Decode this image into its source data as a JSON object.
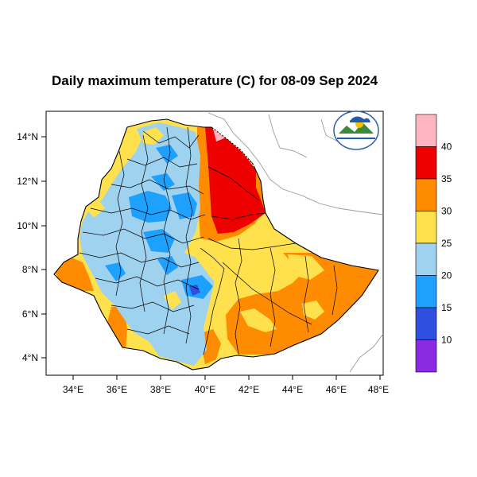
{
  "title": "Daily maximum temperature (C) for 08-09 Sep 2024",
  "axes": {
    "x_ticks": [
      "34°E",
      "36°E",
      "38°E",
      "40°E",
      "42°E",
      "44°E",
      "46°E",
      "48°E"
    ],
    "y_ticks": [
      "14°N",
      "12°N",
      "10°N",
      "8°N",
      "6°N",
      "4°N"
    ]
  },
  "colorbar": {
    "labels": [
      "40",
      "35",
      "30",
      "25",
      "20",
      "15",
      "10"
    ],
    "colors": [
      "#ffb6c1",
      "#ee0000",
      "#ff8c00",
      "#ffe14d",
      "#9fd2ee",
      "#1ea0ff",
      "#2f4fe0",
      "#8a2be2"
    ]
  },
  "colors": {
    "cool_light": "#9fd2ee",
    "cool_mid": "#1ea0ff",
    "cool_dark": "#2f4fe0",
    "warm_yellow": "#ffe14d",
    "warm_orange": "#ff8c00",
    "hot_red": "#ee0000",
    "hot_pink": "#ffb6c1"
  },
  "logo": {
    "icon": "ethiopian-meteorology-institute-logo"
  }
}
